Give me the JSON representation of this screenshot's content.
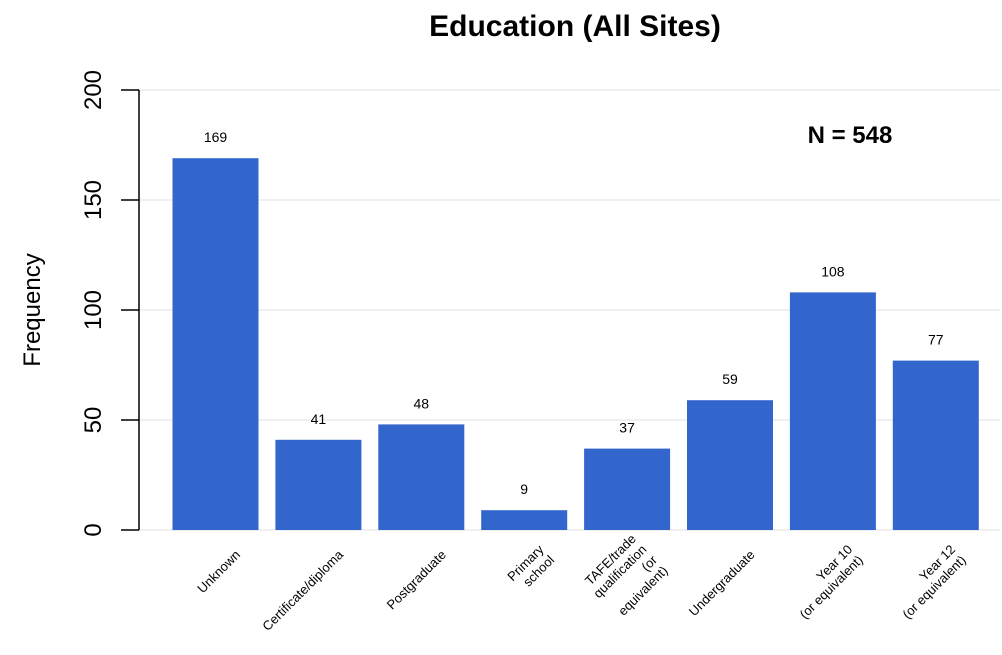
{
  "chart_data": {
    "type": "bar",
    "title": "Education (All Sites)",
    "xlabel": "",
    "ylabel": "Frequency",
    "categories": [
      [
        "Unknown"
      ],
      [
        "Certificate/diploma"
      ],
      [
        "Postgraduate"
      ],
      [
        "Primary",
        "school"
      ],
      [
        "TAFE/trade",
        "qualification",
        "(or",
        "equivalent)"
      ],
      [
        "Undergraduate"
      ],
      [
        "Year 10",
        "(or equivalent)"
      ],
      [
        "Year 12",
        "(or equivalent)"
      ]
    ],
    "values": [
      169,
      41,
      48,
      9,
      37,
      59,
      108,
      77
    ],
    "data_labels": [
      "169",
      "41",
      "48",
      "9",
      "37",
      "59",
      "108",
      "77"
    ],
    "ylim": [
      0,
      200
    ],
    "yticks": [
      0,
      50,
      100,
      150,
      200
    ],
    "ytick_labels": [
      "0",
      "50",
      "100",
      "150",
      "200"
    ],
    "annotation": "N = 548",
    "bar_color": "#3366CC",
    "grid": true,
    "grid_color": "#EBEBEB"
  }
}
